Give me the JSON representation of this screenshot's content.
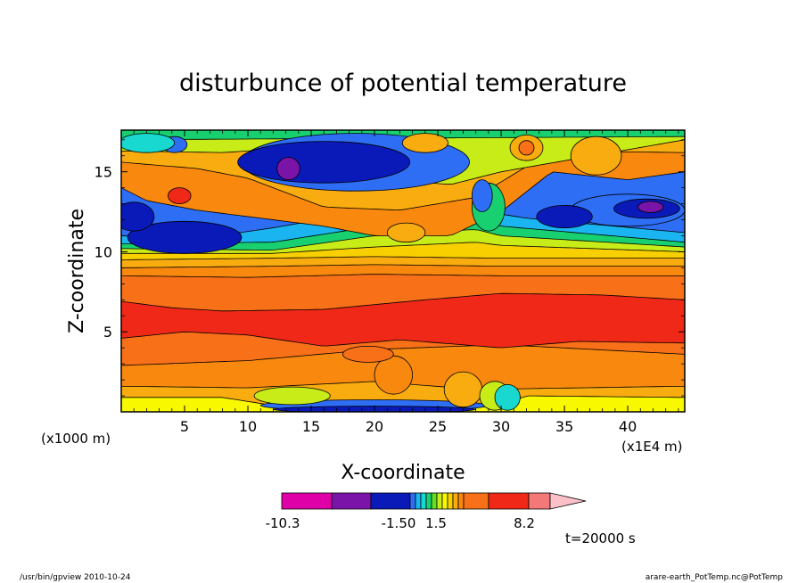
{
  "chart_data": {
    "type": "heatmap",
    "title": "disturbunce of potential temperature",
    "xlabel": "X-coordinate",
    "ylabel": "Z-coordinate",
    "x_unit_left": "(x1000 m)",
    "x_unit_right": "(x1E4 m)",
    "xlim": [
      0,
      44.5
    ],
    "ylim": [
      0,
      17.6
    ],
    "x_ticks": [
      "5",
      "10",
      "15",
      "20",
      "25",
      "30",
      "35",
      "40"
    ],
    "y_ticks": [
      "5",
      "10",
      "15"
    ],
    "x_tick_values": [
      5,
      10,
      15,
      20,
      25,
      30,
      35,
      40
    ],
    "y_tick_values": [
      5,
      10,
      15
    ],
    "levels": [
      -10.3,
      -8.2,
      -5.2,
      -2.5,
      -1.5,
      -1.2,
      -0.9,
      -0.6,
      -0.3,
      0,
      0.3,
      0.6,
      0.9,
      1.2,
      1.5,
      2.5,
      5.2,
      8.2
    ],
    "colorbar_labels": [
      "-10.3",
      "-1.50",
      "1.5",
      "8.2"
    ],
    "colorbar_colors": [
      "#e000a8",
      "#7a14a8",
      "#0a1ab8",
      "#2e6ef5",
      "#1ab4f0",
      "#19d8d0",
      "#18d070",
      "#60e020",
      "#c8ec18",
      "#f8f800",
      "#f8d000",
      "#f8ac10",
      "#f8880e",
      "#f87018",
      "#f02818",
      "#f47878",
      "#fbc0c8"
    ],
    "time_label": "t=20000 s"
  },
  "footer": {
    "left": "/usr/bin/gpview   2010-10-24",
    "right": "arare-earth_PotTemp.nc@PotTemp"
  }
}
